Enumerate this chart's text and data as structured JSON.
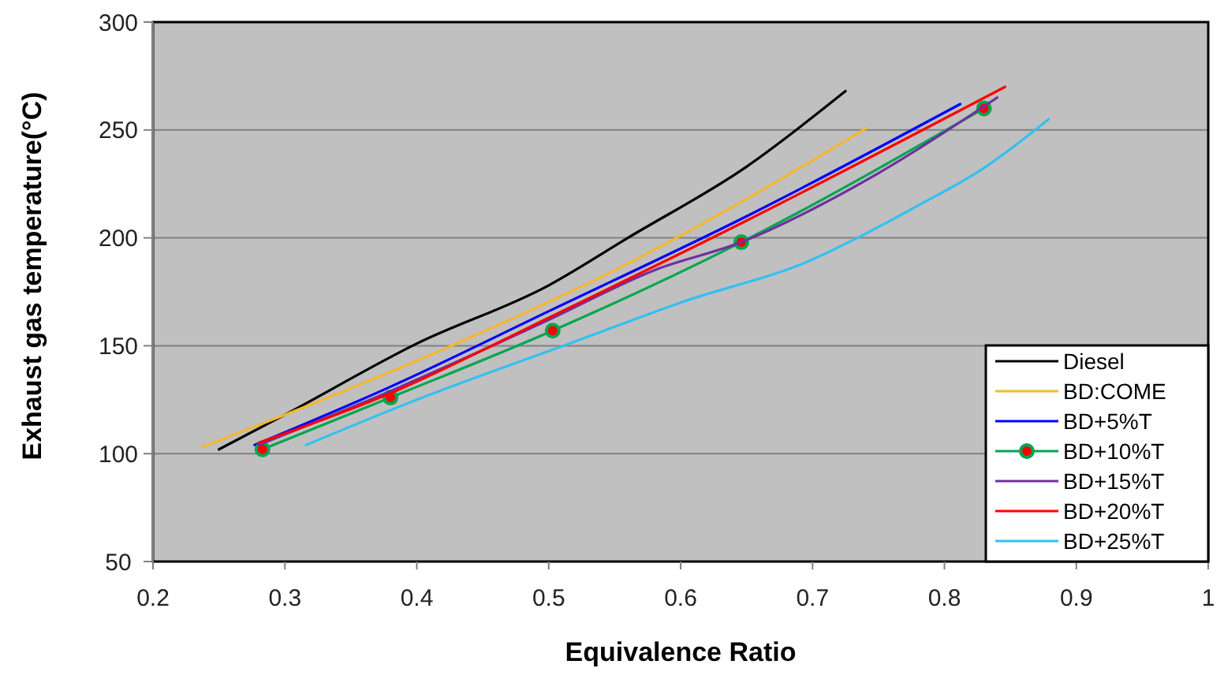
{
  "chart_data": {
    "type": "line",
    "xlabel": "Equivalence Ratio",
    "ylabel": "Exhaust gas temperature(°C)",
    "xlim": [
      0.2,
      1
    ],
    "xticks": [
      0.2,
      0.3,
      0.4,
      0.5,
      0.6,
      0.7,
      0.8,
      0.9,
      1
    ],
    "ylim": [
      50,
      300
    ],
    "yticks": [
      50,
      100,
      150,
      200,
      250,
      300
    ],
    "grid": "y",
    "legend": "bottom right",
    "series": [
      {
        "name": "Diesel",
        "color": "#000000",
        "marker": "none",
        "x": [
          0.25,
          0.3,
          0.4,
          0.5,
          0.56,
          0.65,
          0.725
        ],
        "values": [
          102,
          118,
          151,
          178,
          200,
          233,
          268
        ]
      },
      {
        "name": "BD:COME",
        "color": "#f5b731",
        "marker": "none",
        "x": [
          0.237,
          0.3,
          0.43,
          0.55,
          0.65,
          0.741
        ],
        "values": [
          103,
          118,
          151,
          185,
          218,
          251
        ]
      },
      {
        "name": "BD+5%T",
        "color": "#0000ff",
        "marker": "none",
        "x": [
          0.277,
          0.38,
          0.5,
          0.65,
          0.812
        ],
        "values": [
          104,
          131,
          166,
          210,
          262
        ]
      },
      {
        "name": "BD+10%T",
        "color": "#00a650",
        "marker": "circle",
        "x": [
          0.283,
          0.38,
          0.503,
          0.646,
          0.83
        ],
        "values": [
          102,
          126,
          157,
          198,
          260
        ]
      },
      {
        "name": "BD+15%T",
        "color": "#7030a0",
        "marker": "none",
        "x": [
          0.28,
          0.38,
          0.5,
          0.58,
          0.646,
          0.75,
          0.84
        ],
        "values": [
          104,
          129,
          162,
          185,
          198,
          230,
          265
        ]
      },
      {
        "name": "BD+20%T",
        "color": "#ff0000",
        "marker": "none",
        "x": [
          0.28,
          0.38,
          0.5,
          0.65,
          0.846
        ],
        "values": [
          105,
          128,
          163,
          208,
          270
        ]
      },
      {
        "name": "BD+25%T",
        "color": "#33c0f0",
        "marker": "none",
        "x": [
          0.316,
          0.4,
          0.52,
          0.6,
          0.7,
          0.734,
          0.78,
          0.829,
          0.879
        ],
        "values": [
          104,
          125,
          152,
          170,
          190,
          200,
          215,
          232,
          255
        ]
      }
    ]
  }
}
